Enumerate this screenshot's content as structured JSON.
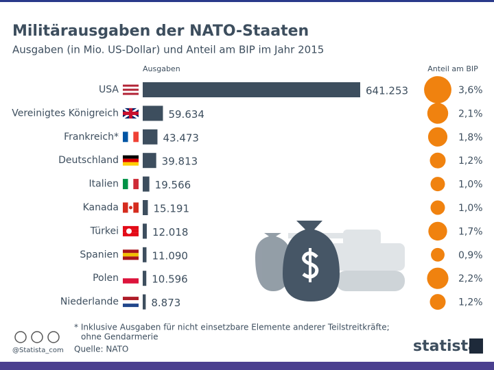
{
  "chart_data": {
    "type": "bar",
    "title": "Militärausgaben der NATO-Staaten",
    "subtitle": "Ausgaben (in Mio. US-Dollar) und Anteil am BIP im Jahr 2015",
    "categories": [
      "USA",
      "Vereinigtes Königreich",
      "Frankreich*",
      "Deutschland",
      "Italien",
      "Kanada",
      "Türkei",
      "Spanien",
      "Polen",
      "Niederlande"
    ],
    "series": [
      {
        "name": "Ausgaben",
        "type": "bar",
        "color": "#3d4e5e",
        "values": [
          641253,
          59634,
          43473,
          39813,
          19566,
          15191,
          12018,
          11090,
          10596,
          8873
        ],
        "value_labels": [
          "641.253",
          "59.634",
          "43.473",
          "39.813",
          "19.566",
          "15.191",
          "12.018",
          "11.090",
          "10.596",
          "8.873"
        ]
      },
      {
        "name": "Anteil am BIP",
        "type": "circle",
        "color": "#f0820f",
        "values": [
          3.6,
          2.1,
          1.8,
          1.2,
          1.0,
          1.0,
          1.7,
          0.9,
          2.2,
          1.2
        ],
        "value_labels": [
          "3,6%",
          "2,1%",
          "1,8%",
          "1,2%",
          "1,0%",
          "1,0%",
          "1,7%",
          "0,9%",
          "2,2%",
          "1,2%"
        ]
      }
    ],
    "note": [
      "* Inklusive Ausgaben für nicht einsetzbare Elemente anderer Teilstreitkräfte;",
      "ohne Gendarmerie"
    ],
    "source": "Quelle: NATO",
    "credit": "@Statista_com",
    "brand": "statista"
  }
}
